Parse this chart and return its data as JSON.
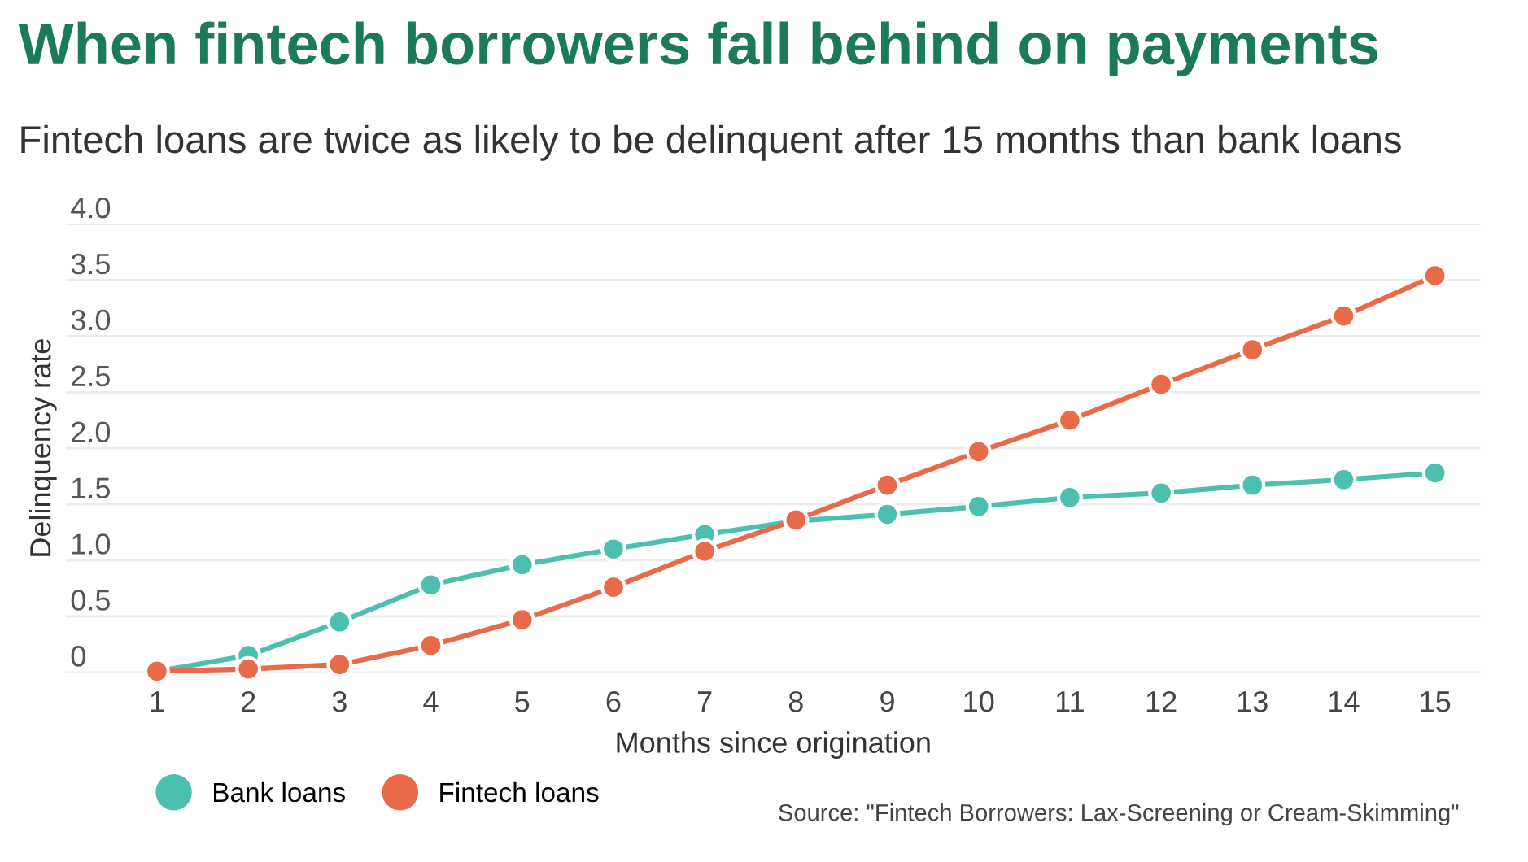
{
  "chart_data": {
    "type": "line",
    "title": "When fintech borrowers fall behind on payments",
    "subtitle": "Fintech loans are twice as likely to be delinquent after 15 months than bank loans",
    "xlabel": "Months since origination",
    "ylabel": "Delinquency rate",
    "x": [
      1,
      2,
      3,
      4,
      5,
      6,
      7,
      8,
      9,
      10,
      11,
      12,
      13,
      14,
      15
    ],
    "series": [
      {
        "name": "Bank loans",
        "color": "#4cc0ae",
        "values": [
          0.01,
          0.15,
          0.45,
          0.78,
          0.96,
          1.1,
          1.23,
          1.35,
          1.41,
          1.48,
          1.56,
          1.6,
          1.67,
          1.72,
          1.78
        ]
      },
      {
        "name": "Fintech loans",
        "color": "#e86a48",
        "values": [
          0.01,
          0.03,
          0.07,
          0.24,
          0.47,
          0.76,
          1.08,
          1.36,
          1.67,
          1.97,
          2.25,
          2.57,
          2.88,
          3.18,
          3.54
        ]
      }
    ],
    "xlim": [
      0,
      15.5
    ],
    "xticks": [
      1,
      2,
      3,
      4,
      5,
      6,
      7,
      8,
      9,
      10,
      11,
      12,
      13,
      14,
      15
    ],
    "ylim": [
      0,
      4.0
    ],
    "yticks": [
      0,
      0.5,
      {
        "value": 1,
        "label": "1.0"
      },
      1.5,
      {
        "value": 2,
        "label": "2.0"
      },
      2.5,
      {
        "value": 3,
        "label": "3.0"
      },
      3.5,
      {
        "value": 4,
        "label": "4.0"
      }
    ],
    "grid": "y",
    "legend": "bottom left",
    "marker": "circle",
    "line_style": "solid",
    "annotations": [
      "Source: \"Fintech Borrowers: Lax-Screening or Cream-Skimming\""
    ]
  }
}
